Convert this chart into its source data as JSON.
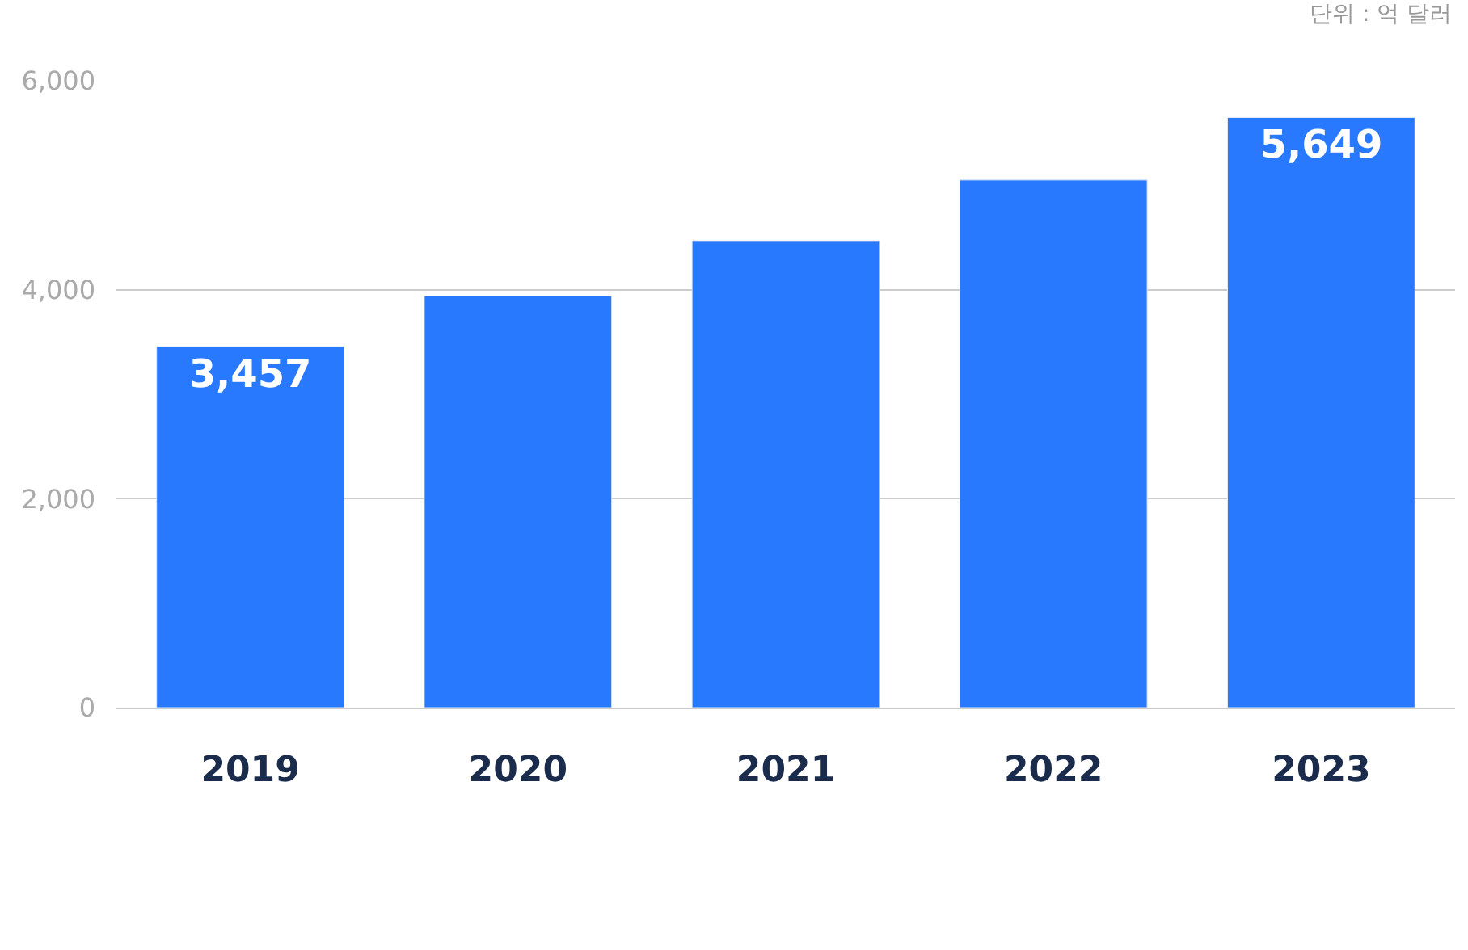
{
  "chart_data": {
    "type": "bar",
    "categories": [
      "2019",
      "2020",
      "2021",
      "2022",
      "2023"
    ],
    "values": [
      3457,
      3940,
      4470,
      5050,
      5649
    ],
    "value_labels": [
      "3,457",
      null,
      null,
      null,
      "5,649"
    ],
    "color": "#2979ff",
    "ylim": [
      0,
      6000
    ],
    "yticks": [
      0,
      {
        "value": 2000,
        "label": "2,000"
      },
      {
        "value": 4000,
        "label": "4,000"
      },
      {
        "value": 6000,
        "label": "6,000"
      }
    ],
    "grid": "y",
    "legend": false,
    "annotations": [
      "단위 : 억 달러"
    ]
  }
}
